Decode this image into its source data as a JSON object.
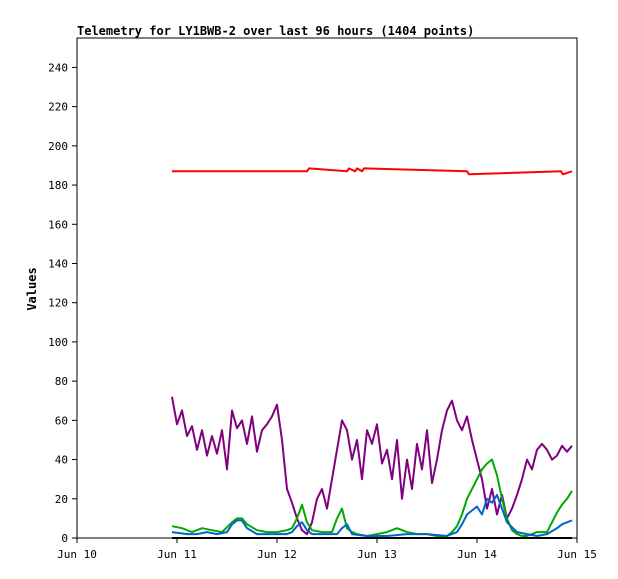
{
  "chart_data": {
    "type": "line",
    "title": "Telemetry for LY1BWB-2 over last 96 hours (1404 points)",
    "xlabel": "",
    "ylabel": "Values",
    "x_ticks": [
      "Jun 10",
      "Jun 11",
      "Jun 12",
      "Jun 13",
      "Jun 14",
      "Jun 15"
    ],
    "y_ticks": [
      0,
      20,
      40,
      60,
      80,
      100,
      120,
      140,
      160,
      180,
      200,
      220,
      240
    ],
    "xlim_days": [
      0,
      5
    ],
    "ylim": [
      0,
      255
    ],
    "grid": false,
    "legend": "none",
    "series": [
      {
        "color": "#ff0000",
        "x": [
          0.95,
          2.3,
          2.32,
          2.7,
          2.72,
          2.78,
          2.8,
          2.85,
          2.87,
          3.9,
          3.92,
          4.84,
          4.86,
          4.95
        ],
        "y": [
          187,
          187,
          188.5,
          187,
          188.5,
          187,
          188.5,
          187,
          188.5,
          187,
          185.5,
          187,
          185.5,
          187
        ]
      },
      {
        "color": "#800080",
        "x": [
          0.95,
          1.0,
          1.05,
          1.1,
          1.15,
          1.2,
          1.25,
          1.3,
          1.35,
          1.4,
          1.45,
          1.5,
          1.55,
          1.6,
          1.65,
          1.7,
          1.75,
          1.8,
          1.85,
          1.9,
          1.95,
          2.0,
          2.05,
          2.1,
          2.15,
          2.2,
          2.25,
          2.3,
          2.35,
          2.4,
          2.45,
          2.5,
          2.55,
          2.6,
          2.65,
          2.7,
          2.75,
          2.8,
          2.85,
          2.9,
          2.95,
          3.0,
          3.05,
          3.1,
          3.15,
          3.2,
          3.25,
          3.3,
          3.35,
          3.4,
          3.45,
          3.5,
          3.55,
          3.6,
          3.65,
          3.7,
          3.75,
          3.8,
          3.85,
          3.9,
          3.95,
          4.0,
          4.05,
          4.1,
          4.15,
          4.2,
          4.25,
          4.3,
          4.35,
          4.4,
          4.45,
          4.5,
          4.55,
          4.6,
          4.65,
          4.7,
          4.75,
          4.8,
          4.85,
          4.9,
          4.95
        ],
        "y": [
          72,
          58,
          65,
          52,
          57,
          45,
          55,
          42,
          52,
          43,
          55,
          35,
          65,
          56,
          60,
          48,
          62,
          44,
          55,
          58,
          62,
          68,
          50,
          25,
          18,
          10,
          4,
          2,
          8,
          20,
          25,
          15,
          30,
          45,
          60,
          55,
          40,
          50,
          30,
          55,
          48,
          58,
          38,
          45,
          30,
          50,
          20,
          40,
          25,
          48,
          35,
          55,
          28,
          40,
          55,
          65,
          70,
          60,
          55,
          62,
          50,
          40,
          30,
          15,
          25,
          12,
          22,
          10,
          15,
          22,
          30,
          40,
          35,
          45,
          48,
          45,
          40,
          42,
          47,
          44,
          47
        ]
      },
      {
        "color": "#00aa00",
        "x": [
          0.95,
          1.05,
          1.15,
          1.25,
          1.35,
          1.45,
          1.55,
          1.6,
          1.65,
          1.7,
          1.8,
          1.9,
          2.0,
          2.1,
          2.15,
          2.2,
          2.25,
          2.3,
          2.35,
          2.45,
          2.55,
          2.6,
          2.65,
          2.7,
          2.75,
          2.8,
          2.9,
          3.0,
          3.1,
          3.2,
          3.3,
          3.4,
          3.5,
          3.6,
          3.7,
          3.75,
          3.8,
          3.85,
          3.9,
          3.95,
          4.0,
          4.05,
          4.1,
          4.15,
          4.2,
          4.25,
          4.3,
          4.35,
          4.4,
          4.45,
          4.5,
          4.55,
          4.6,
          4.65,
          4.7,
          4.75,
          4.8,
          4.85,
          4.9,
          4.95
        ],
        "y": [
          6,
          5,
          3,
          5,
          4,
          3,
          8,
          10,
          10,
          7,
          4,
          3,
          3,
          4,
          5,
          10,
          17,
          8,
          4,
          3,
          3,
          10,
          15,
          5,
          3,
          2,
          1,
          2,
          3,
          5,
          3,
          2,
          2,
          1,
          1,
          3,
          6,
          12,
          20,
          25,
          30,
          35,
          38,
          40,
          32,
          20,
          10,
          4,
          2,
          1,
          1,
          2,
          3,
          3,
          3,
          8,
          13,
          17,
          20,
          24
        ]
      },
      {
        "color": "#0066cc",
        "x": [
          0.95,
          1.1,
          1.2,
          1.3,
          1.4,
          1.5,
          1.55,
          1.6,
          1.65,
          1.7,
          1.8,
          1.9,
          2.0,
          2.1,
          2.15,
          2.2,
          2.25,
          2.3,
          2.35,
          2.5,
          2.6,
          2.65,
          2.7,
          2.75,
          2.9,
          3.1,
          3.3,
          3.5,
          3.7,
          3.8,
          3.85,
          3.9,
          3.95,
          4.0,
          4.05,
          4.1,
          4.15,
          4.2,
          4.25,
          4.3,
          4.4,
          4.5,
          4.6,
          4.7,
          4.8,
          4.85,
          4.9,
          4.95
        ],
        "y": [
          3,
          2,
          2,
          3,
          2,
          3,
          7,
          9,
          9,
          5,
          2,
          2,
          2,
          2,
          3,
          6,
          8,
          4,
          2,
          2,
          2,
          5,
          7,
          2,
          1,
          1,
          2,
          2,
          1,
          3,
          7,
          12,
          14,
          16,
          12,
          20,
          18,
          22,
          15,
          8,
          3,
          2,
          1,
          2,
          5,
          7,
          8,
          9
        ]
      },
      {
        "color": "#000000",
        "x": [
          0.95,
          4.95
        ],
        "y": [
          0,
          0
        ]
      }
    ]
  }
}
